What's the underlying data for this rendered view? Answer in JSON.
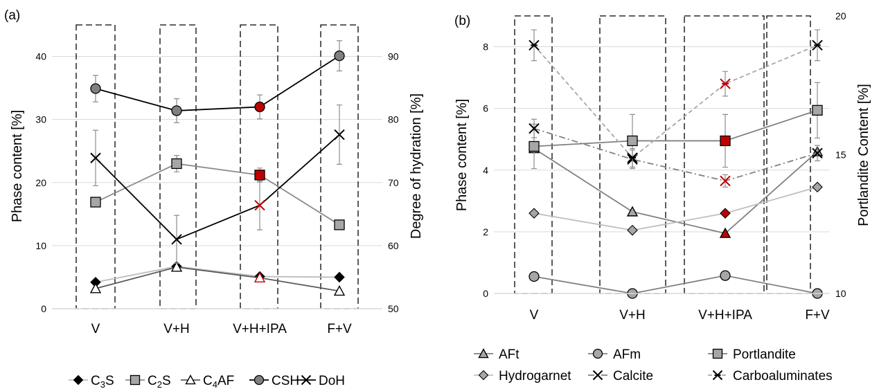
{
  "panels": [
    {
      "label": "(a)"
    },
    {
      "label": "(b)"
    }
  ],
  "chart_data": [
    {
      "type": "line",
      "panel": "(a)",
      "categories": [
        "V",
        "V+H",
        "V+H+IPA",
        "F+V"
      ],
      "ylabel": "Phase content [%]",
      "y2label": "Degree of hydration [%]",
      "ylim": [
        0,
        45
      ],
      "y2lim": [
        50,
        95
      ],
      "yticks": [
        "0",
        "10",
        "20",
        "30",
        "40"
      ],
      "y2ticks": [
        "50",
        "60",
        "70",
        "80",
        "90"
      ],
      "grid": true,
      "legend_position": "bottom",
      "series": [
        {
          "name": "C3S",
          "legend": {
            "base": "C",
            "sub": "3",
            "tail": "S"
          },
          "axis": "left",
          "marker": "diamond",
          "marker_color": "#000000",
          "line_color": "#bdbdbd",
          "values": [
            4.2,
            6.7,
            5.1,
            5.0
          ],
          "errors": [
            0,
            0,
            0,
            0
          ],
          "highlight_index": -1
        },
        {
          "name": "C2S",
          "legend": {
            "base": "C",
            "sub": "2",
            "tail": "S"
          },
          "axis": "left",
          "marker": "square",
          "marker_color": "#a6a6a6",
          "line_color": "#8c8c8c",
          "values": [
            16.9,
            23.0,
            21.2,
            13.3
          ],
          "errors": [
            0.6,
            1.3,
            1.1,
            0
          ],
          "highlight_index": 2
        },
        {
          "name": "C4AF",
          "legend": {
            "base": "C",
            "sub": "4",
            "tail": "AF"
          },
          "axis": "left",
          "marker": "triangle",
          "marker_color": "#ffffff",
          "line_color": "#595959",
          "values": [
            3.2,
            6.6,
            4.9,
            2.8
          ],
          "errors": [
            0,
            0,
            0,
            0
          ],
          "highlight_index": 2
        },
        {
          "name": "CSH",
          "legend": {
            "base": "CSH",
            "sub": "",
            "tail": ""
          },
          "axis": "left",
          "marker": "circle",
          "marker_color": "#808080",
          "line_color": "#000000",
          "values": [
            34.9,
            31.4,
            32.0,
            40.1
          ],
          "errors": [
            2.1,
            1.9,
            1.9,
            2.4
          ],
          "highlight_index": 2
        },
        {
          "name": "DoH",
          "legend": {
            "base": "DoH",
            "sub": "",
            "tail": ""
          },
          "axis": "right",
          "marker": "x",
          "marker_color": "#000000",
          "line_color": "#000000",
          "values": [
            73.9,
            61.0,
            66.4,
            77.6
          ],
          "errors": [
            4.4,
            3.8,
            3.9,
            4.7
          ],
          "highlight_index": 2
        }
      ]
    },
    {
      "type": "line",
      "panel": "(b)",
      "categories": [
        "V",
        "V+H",
        "V+H+IPA",
        "F+V"
      ],
      "ylabel": "Phase content [%]",
      "y2label": "Portlandite Content [%]",
      "ylim": [
        0,
        9
      ],
      "y2lim": [
        10,
        20
      ],
      "yticks": [
        "0",
        "2",
        "4",
        "6",
        "8"
      ],
      "y2ticks": [
        "10",
        "15",
        "20"
      ],
      "grid": true,
      "legend_position": "bottom",
      "series": [
        {
          "name": "AFt",
          "axis": "left",
          "marker": "triangle",
          "marker_color": "#a6a6a6",
          "line_color": "#808080",
          "dash": "",
          "values": [
            4.7,
            2.65,
            1.95,
            4.6
          ],
          "errors": [
            0,
            0,
            0,
            0
          ],
          "highlight_index": 2
        },
        {
          "name": "AFm",
          "axis": "left",
          "marker": "circle",
          "marker_color": "#a6a6a6",
          "line_color": "#808080",
          "dash": "",
          "values": [
            0.55,
            0.0,
            0.58,
            0.0
          ],
          "errors": [
            0,
            0,
            0,
            0
          ],
          "highlight_index": -1
        },
        {
          "name": "Portlandite",
          "axis": "right",
          "marker": "square",
          "marker_color": "#a6a6a6",
          "line_color": "#808080",
          "dash": "",
          "values": [
            15.3,
            15.5,
            15.5,
            16.6
          ],
          "errors": [
            0.8,
            0.95,
            0.95,
            1.0
          ],
          "highlight_index": 2
        },
        {
          "name": "Hydrogarnet",
          "axis": "left",
          "marker": "diamond",
          "marker_color": "#a6a6a6",
          "line_color": "#bfbfbf",
          "dash": "",
          "values": [
            2.6,
            2.05,
            2.6,
            3.45
          ],
          "errors": [
            0,
            0,
            0,
            0
          ],
          "highlight_index": 2
        },
        {
          "name": "Calcite",
          "axis": "left",
          "marker": "x",
          "marker_color": "#000000",
          "line_color": "#808080",
          "dash": "9,4,2,4",
          "values": [
            5.35,
            4.35,
            3.65,
            4.55
          ],
          "errors": [
            0.3,
            0.3,
            0.2,
            0.25
          ],
          "highlight_index": 2
        },
        {
          "name": "Carboaluminates",
          "axis": "left",
          "marker": "asterisk",
          "marker_color": "#000000",
          "line_color": "#a6a6a6",
          "dash": "6,4",
          "values": [
            8.05,
            4.4,
            6.8,
            8.05
          ],
          "errors": [
            0.5,
            0.3,
            0.4,
            0.5
          ],
          "highlight_index": 2
        }
      ]
    }
  ]
}
